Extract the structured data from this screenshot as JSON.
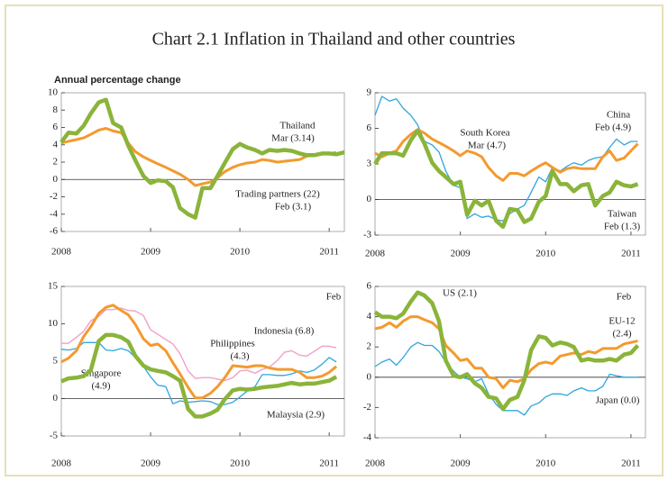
{
  "title": "Chart 2.1  Inflation in Thailand and other countries",
  "chart_data": [
    {
      "type": "line",
      "subtitle": "Annual percentage change",
      "ylim": [
        -6,
        10
      ],
      "yticks": [
        -6,
        -4,
        -2,
        0,
        2,
        4,
        6,
        8,
        10
      ],
      "xlim": [
        2008,
        2011.17
      ],
      "xticks": [
        2008,
        2009,
        2010,
        2011
      ],
      "zero_line": true,
      "x": [
        2008,
        2008.08,
        2008.17,
        2008.25,
        2008.33,
        2008.42,
        2008.5,
        2008.58,
        2008.67,
        2008.75,
        2008.83,
        2008.92,
        2009,
        2009.08,
        2009.17,
        2009.25,
        2009.33,
        2009.42,
        2009.5,
        2009.58,
        2009.67,
        2009.75,
        2009.83,
        2009.92,
        2010,
        2010.08,
        2010.17,
        2010.25,
        2010.33,
        2010.42,
        2010.5,
        2010.58,
        2010.67,
        2010.75,
        2010.83,
        2010.92,
        2011,
        2011.08,
        2011.17
      ],
      "series": [
        {
          "name": "Trading partners (22)",
          "note": "Feb (3.1)",
          "color": "#f39a2e",
          "line_width": 3,
          "values": [
            4.2,
            4.4,
            4.6,
            4.8,
            5.2,
            5.7,
            5.9,
            5.6,
            5.4,
            4.2,
            3.2,
            2.6,
            2.2,
            1.8,
            1.4,
            1.0,
            0.6,
            0.0,
            -0.7,
            -0.5,
            -0.3,
            0.2,
            0.9,
            1.4,
            1.7,
            1.9,
            2.0,
            2.3,
            2.2,
            2.0,
            2.1,
            2.2,
            2.3,
            2.7,
            2.8,
            3.0,
            3.0,
            3.1,
            null
          ]
        },
        {
          "name": "Thailand",
          "note": "Mar (3.14)",
          "color": "#8ab43a",
          "line_width": 4.5,
          "values": [
            4.3,
            5.4,
            5.3,
            6.2,
            7.6,
            8.9,
            9.2,
            6.5,
            6.0,
            3.9,
            2.2,
            0.4,
            -0.4,
            -0.1,
            -0.2,
            -0.9,
            -3.3,
            -4.0,
            -4.4,
            -1.0,
            -1.0,
            0.4,
            1.9,
            3.5,
            4.1,
            3.7,
            3.4,
            3.0,
            3.4,
            3.3,
            3.4,
            3.3,
            3.0,
            2.8,
            2.8,
            3.0,
            3.0,
            2.9,
            3.14
          ]
        }
      ]
    },
    {
      "type": "line",
      "ylim": [
        -3,
        9
      ],
      "yticks": [
        -3,
        0,
        3,
        6,
        9
      ],
      "xlim": [
        2008,
        2011.17
      ],
      "xticks": [
        2008,
        2009,
        2010,
        2011
      ],
      "zero_line": true,
      "x": [
        2008,
        2008.08,
        2008.17,
        2008.25,
        2008.33,
        2008.42,
        2008.5,
        2008.58,
        2008.67,
        2008.75,
        2008.83,
        2008.92,
        2009,
        2009.08,
        2009.17,
        2009.25,
        2009.33,
        2009.42,
        2009.5,
        2009.58,
        2009.67,
        2009.75,
        2009.83,
        2009.92,
        2010,
        2010.08,
        2010.17,
        2010.25,
        2010.33,
        2010.42,
        2010.5,
        2010.58,
        2010.67,
        2010.75,
        2010.83,
        2010.92,
        2011,
        2011.08
      ],
      "series": [
        {
          "name": "China",
          "note": "Feb (4.9)",
          "color": "#2fa6dc",
          "line_width": 1.3,
          "values": [
            7.1,
            8.7,
            8.3,
            8.5,
            7.7,
            7.1,
            6.3,
            4.9,
            4.6,
            4.0,
            2.4,
            1.2,
            1.0,
            -1.6,
            -1.2,
            -1.5,
            -1.4,
            -1.7,
            -1.8,
            -1.2,
            -0.8,
            -0.5,
            0.6,
            1.9,
            1.5,
            2.7,
            2.4,
            2.8,
            3.1,
            2.9,
            3.3,
            3.5,
            3.6,
            4.4,
            5.1,
            4.6,
            4.9,
            4.9
          ]
        },
        {
          "name": "South Korea",
          "note": "Mar (4.7)",
          "color": "#f39a2e",
          "line_width": 3,
          "values": [
            3.9,
            3.6,
            3.9,
            4.1,
            4.9,
            5.5,
            5.9,
            5.6,
            5.1,
            4.8,
            4.5,
            4.1,
            3.7,
            4.1,
            3.9,
            3.6,
            2.7,
            2.0,
            1.6,
            2.2,
            2.2,
            2.0,
            2.4,
            2.8,
            3.1,
            2.7,
            2.3,
            2.6,
            2.7,
            2.6,
            2.6,
            2.6,
            3.6,
            4.1,
            3.3,
            3.5,
            4.1,
            4.7
          ]
        },
        {
          "name": "Taiwan",
          "note": "Feb (1.3)",
          "color": "#8ab43a",
          "line_width": 4.5,
          "values": [
            3.0,
            3.9,
            3.9,
            3.9,
            3.7,
            5.0,
            5.8,
            4.7,
            3.1,
            2.4,
            1.9,
            1.3,
            1.5,
            -1.3,
            -0.1,
            -0.5,
            -0.1,
            -1.8,
            -2.3,
            -0.8,
            -0.9,
            -1.9,
            -1.6,
            -0.2,
            0.3,
            2.4,
            1.3,
            1.3,
            0.7,
            1.2,
            1.3,
            -0.5,
            0.3,
            0.6,
            1.5,
            1.2,
            1.1,
            1.3
          ]
        }
      ]
    },
    {
      "type": "line",
      "annotation": "Feb",
      "ylim": [
        -5,
        15
      ],
      "yticks": [
        -5,
        0,
        5,
        10,
        15
      ],
      "xlim": [
        2008,
        2011.17
      ],
      "xticks": [
        2008,
        2009,
        2010,
        2011
      ],
      "zero_line": true,
      "x": [
        2008,
        2008.08,
        2008.17,
        2008.25,
        2008.33,
        2008.42,
        2008.5,
        2008.58,
        2008.67,
        2008.75,
        2008.83,
        2008.92,
        2009,
        2009.08,
        2009.17,
        2009.25,
        2009.33,
        2009.42,
        2009.5,
        2009.58,
        2009.67,
        2009.75,
        2009.83,
        2009.92,
        2010,
        2010.08,
        2010.17,
        2010.25,
        2010.33,
        2010.42,
        2010.5,
        2010.58,
        2010.67,
        2010.75,
        2010.83,
        2010.92,
        2011,
        2011.08
      ],
      "series": [
        {
          "name": "Indonesia (6.8)",
          "color": "#f2a6cb",
          "line_width": 1.5,
          "values": [
            7.4,
            7.4,
            8.2,
            9.0,
            10.4,
            11.0,
            11.9,
            11.9,
            12.1,
            11.8,
            11.7,
            11.1,
            9.2,
            8.6,
            7.9,
            7.3,
            6.0,
            3.7,
            2.7,
            2.8,
            2.8,
            2.6,
            2.4,
            2.8,
            3.7,
            3.8,
            3.4,
            3.9,
            4.2,
            5.1,
            6.2,
            6.4,
            5.8,
            5.7,
            6.3,
            7.0,
            7.0,
            6.8
          ]
        },
        {
          "name": "Singapore",
          "note": "(4.9)",
          "color": "#2fa6dc",
          "line_width": 1.3,
          "values": [
            6.6,
            6.5,
            6.7,
            7.5,
            7.5,
            7.5,
            6.5,
            6.4,
            6.7,
            6.4,
            5.5,
            4.3,
            2.9,
            1.8,
            1.6,
            -0.7,
            -0.3,
            -0.5,
            -0.4,
            -0.3,
            -0.4,
            -0.8,
            -0.8,
            -0.5,
            0.2,
            1.0,
            1.6,
            3.2,
            3.2,
            3.1,
            3.1,
            3.3,
            3.7,
            3.5,
            3.8,
            4.6,
            5.5,
            4.9
          ]
        },
        {
          "name": "Malaysia (2.9)",
          "color": "#8ab43a",
          "line_width": 4.5,
          "values": [
            2.3,
            2.7,
            2.8,
            3.0,
            3.8,
            7.7,
            8.5,
            8.5,
            8.2,
            7.6,
            5.7,
            4.4,
            3.9,
            3.7,
            3.5,
            3.0,
            2.4,
            -1.4,
            -2.4,
            -2.4,
            -2.0,
            -1.5,
            -0.1,
            1.1,
            1.3,
            1.2,
            1.3,
            1.5,
            1.6,
            1.7,
            1.9,
            2.1,
            1.9,
            2.0,
            2.0,
            2.2,
            2.4,
            2.9
          ]
        },
        {
          "name": "Philippines",
          "note": "(4.3)",
          "color": "#f39a2e",
          "line_width": 3,
          "values": [
            4.9,
            5.4,
            6.4,
            8.3,
            9.6,
            11.4,
            12.2,
            12.5,
            11.8,
            11.2,
            9.9,
            8.0,
            7.1,
            7.3,
            6.4,
            4.8,
            3.3,
            1.5,
            0.1,
            0.1,
            0.7,
            1.6,
            2.8,
            4.4,
            4.3,
            4.2,
            4.4,
            4.4,
            4.1,
            3.9,
            3.9,
            3.9,
            3.5,
            2.8,
            2.8,
            3.0,
            3.5,
            4.3
          ]
        }
      ]
    },
    {
      "type": "line",
      "annotation": "Feb",
      "ylim": [
        -4,
        6
      ],
      "yticks": [
        -4,
        -2,
        0,
        2,
        4,
        6
      ],
      "xlim": [
        2008,
        2011.17
      ],
      "xticks": [
        2008,
        2009,
        2010,
        2011
      ],
      "zero_line": true,
      "x": [
        2008,
        2008.08,
        2008.17,
        2008.25,
        2008.33,
        2008.42,
        2008.5,
        2008.58,
        2008.67,
        2008.75,
        2008.83,
        2008.92,
        2009,
        2009.08,
        2009.17,
        2009.25,
        2009.33,
        2009.42,
        2009.5,
        2009.58,
        2009.67,
        2009.75,
        2009.83,
        2009.92,
        2010,
        2010.08,
        2010.17,
        2010.25,
        2010.33,
        2010.42,
        2010.5,
        2010.58,
        2010.67,
        2010.75,
        2010.83,
        2010.92,
        2011,
        2011.08
      ],
      "series": [
        {
          "name": "Japan (0.0)",
          "color": "#2fa6dc",
          "line_width": 1.3,
          "values": [
            0.7,
            1.0,
            1.2,
            0.8,
            1.3,
            2.0,
            2.3,
            2.1,
            2.1,
            1.7,
            1.0,
            0.4,
            0.0,
            -0.1,
            -0.3,
            -0.1,
            -1.1,
            -1.8,
            -2.2,
            -2.2,
            -2.2,
            -2.5,
            -1.9,
            -1.7,
            -1.3,
            -1.1,
            -1.1,
            -1.2,
            -0.9,
            -0.7,
            -0.9,
            -0.9,
            -0.6,
            0.2,
            0.1,
            0.0,
            0.0,
            0.0
          ]
        },
        {
          "name": "EU-12",
          "note": "(2.4)",
          "color": "#f39a2e",
          "line_width": 3,
          "values": [
            3.2,
            3.3,
            3.6,
            3.3,
            3.7,
            4.0,
            4.0,
            3.8,
            3.6,
            3.2,
            2.1,
            1.6,
            1.1,
            1.2,
            0.6,
            0.6,
            0.0,
            -0.1,
            -0.7,
            -0.2,
            -0.3,
            -0.1,
            0.5,
            0.9,
            1.0,
            0.9,
            1.4,
            1.5,
            1.6,
            1.5,
            1.7,
            1.6,
            1.9,
            1.9,
            1.9,
            2.2,
            2.3,
            2.4
          ]
        },
        {
          "name": "US (2.1)",
          "color": "#8ab43a",
          "line_width": 4.5,
          "values": [
            4.3,
            4.0,
            4.0,
            3.9,
            4.2,
            5.0,
            5.6,
            5.4,
            4.9,
            3.7,
            1.1,
            0.1,
            0.0,
            0.2,
            -0.4,
            -0.7,
            -1.3,
            -1.4,
            -2.1,
            -1.5,
            -1.3,
            -0.2,
            1.8,
            2.7,
            2.6,
            2.1,
            2.3,
            2.2,
            2.0,
            1.1,
            1.2,
            1.1,
            1.1,
            1.2,
            1.1,
            1.5,
            1.6,
            2.1
          ]
        }
      ]
    }
  ]
}
